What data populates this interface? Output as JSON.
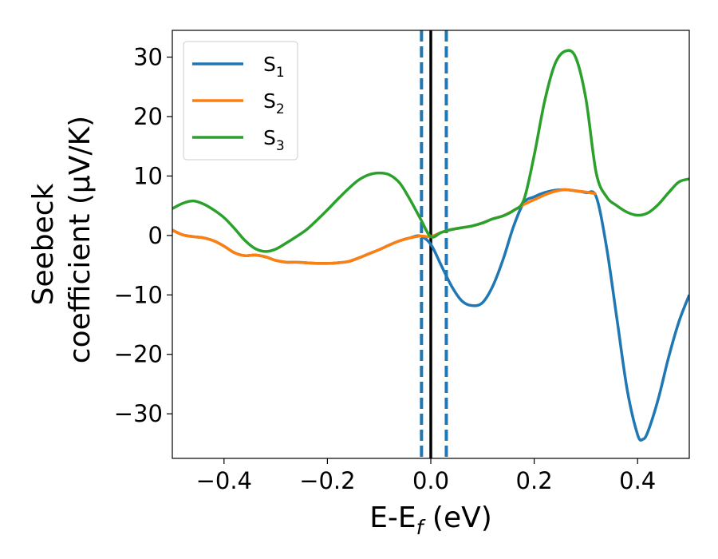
{
  "chart_data": {
    "type": "line",
    "xlabel": "E-E",
    "xlabel_sub": "f",
    "xlabel_unit": " (eV)",
    "ylabel_line1": "Seebeck",
    "ylabel_line2": "coefficient  (μV/K)",
    "xlim": [
      -0.5,
      0.5
    ],
    "ylim": [
      -37.5,
      34.5
    ],
    "xticks": [
      -0.4,
      -0.2,
      0.0,
      0.2,
      0.4
    ],
    "xtick_labels": [
      "−0.4",
      "−0.2",
      "0.0",
      "0.2",
      "0.4"
    ],
    "yticks": [
      30,
      20,
      10,
      0,
      -10,
      -20,
      -30
    ],
    "ytick_labels": [
      "30",
      "20",
      "10",
      "0",
      "−10",
      "−20",
      "−30"
    ],
    "grid": false,
    "legend_position": "top-left",
    "vlines": [
      {
        "x": -0.018,
        "style": "dashed",
        "color": "#1f77b4"
      },
      {
        "x": 0.03,
        "style": "dashed",
        "color": "#1f77b4"
      },
      {
        "x": 0.0,
        "style": "solid",
        "color": "#000000"
      }
    ],
    "series": [
      {
        "name": "S",
        "name_sub": "1",
        "color": "#1f77b4",
        "points": [
          [
            -0.5,
            0.9
          ],
          [
            -0.48,
            0.1
          ],
          [
            -0.46,
            -0.2
          ],
          [
            -0.44,
            -0.4
          ],
          [
            -0.42,
            -0.9
          ],
          [
            -0.4,
            -1.8
          ],
          [
            -0.38,
            -2.9
          ],
          [
            -0.36,
            -3.4
          ],
          [
            -0.34,
            -3.3
          ],
          [
            -0.32,
            -3.6
          ],
          [
            -0.3,
            -4.2
          ],
          [
            -0.28,
            -4.5
          ],
          [
            -0.26,
            -4.5
          ],
          [
            -0.24,
            -4.6
          ],
          [
            -0.22,
            -4.7
          ],
          [
            -0.2,
            -4.7
          ],
          [
            -0.18,
            -4.6
          ],
          [
            -0.16,
            -4.4
          ],
          [
            -0.14,
            -3.8
          ],
          [
            -0.12,
            -3.1
          ],
          [
            -0.1,
            -2.4
          ],
          [
            -0.08,
            -1.6
          ],
          [
            -0.06,
            -0.9
          ],
          [
            -0.04,
            -0.4
          ],
          [
            -0.02,
            -0.1
          ],
          [
            0.0,
            -1.5
          ],
          [
            0.02,
            -5.0
          ],
          [
            0.04,
            -8.5
          ],
          [
            0.06,
            -11.0
          ],
          [
            0.08,
            -11.8
          ],
          [
            0.1,
            -11.3
          ],
          [
            0.12,
            -8.5
          ],
          [
            0.14,
            -4.0
          ],
          [
            0.16,
            1.5
          ],
          [
            0.18,
            5.5
          ],
          [
            0.2,
            6.5
          ],
          [
            0.22,
            7.2
          ],
          [
            0.24,
            7.6
          ],
          [
            0.26,
            7.7
          ],
          [
            0.28,
            7.5
          ],
          [
            0.3,
            7.2
          ],
          [
            0.32,
            6.5
          ],
          [
            0.34,
            -2.0
          ],
          [
            0.36,
            -14.0
          ],
          [
            0.38,
            -26.0
          ],
          [
            0.4,
            -33.5
          ],
          [
            0.41,
            -34.3
          ],
          [
            0.42,
            -33.0
          ],
          [
            0.44,
            -27.5
          ],
          [
            0.46,
            -20.5
          ],
          [
            0.48,
            -14.5
          ],
          [
            0.5,
            -10.0
          ]
        ]
      },
      {
        "name": "S",
        "name_sub": "2",
        "color": "#ff7f0e",
        "points": [
          [
            -0.5,
            0.9
          ],
          [
            -0.48,
            0.1
          ],
          [
            -0.46,
            -0.2
          ],
          [
            -0.44,
            -0.4
          ],
          [
            -0.42,
            -0.9
          ],
          [
            -0.4,
            -1.8
          ],
          [
            -0.38,
            -2.9
          ],
          [
            -0.36,
            -3.4
          ],
          [
            -0.34,
            -3.3
          ],
          [
            -0.32,
            -3.6
          ],
          [
            -0.3,
            -4.2
          ],
          [
            -0.28,
            -4.5
          ],
          [
            -0.26,
            -4.5
          ],
          [
            -0.24,
            -4.6
          ],
          [
            -0.22,
            -4.7
          ],
          [
            -0.2,
            -4.7
          ],
          [
            -0.18,
            -4.6
          ],
          [
            -0.16,
            -4.4
          ],
          [
            -0.14,
            -3.8
          ],
          [
            -0.12,
            -3.1
          ],
          [
            -0.1,
            -2.4
          ],
          [
            -0.08,
            -1.6
          ],
          [
            -0.06,
            -0.9
          ],
          [
            -0.04,
            -0.4
          ],
          [
            -0.02,
            -0.1
          ],
          [
            0.0,
            -0.2
          ],
          [
            0.02,
            0.5
          ],
          [
            0.04,
            1.0
          ],
          [
            0.06,
            1.3
          ],
          [
            0.08,
            1.6
          ],
          [
            0.1,
            2.1
          ],
          [
            0.12,
            2.8
          ],
          [
            0.14,
            3.3
          ],
          [
            0.16,
            4.2
          ],
          [
            0.18,
            5.2
          ],
          [
            0.2,
            6.0
          ],
          [
            0.22,
            6.8
          ],
          [
            0.24,
            7.4
          ],
          [
            0.26,
            7.7
          ],
          [
            0.28,
            7.5
          ],
          [
            0.3,
            7.3
          ],
          [
            0.32,
            7.0
          ]
        ]
      },
      {
        "name": "S",
        "name_sub": "3",
        "color": "#2ca02c",
        "points": [
          [
            -0.5,
            4.5
          ],
          [
            -0.48,
            5.4
          ],
          [
            -0.46,
            5.8
          ],
          [
            -0.44,
            5.3
          ],
          [
            -0.42,
            4.3
          ],
          [
            -0.4,
            3.0
          ],
          [
            -0.38,
            1.2
          ],
          [
            -0.36,
            -0.8
          ],
          [
            -0.34,
            -2.2
          ],
          [
            -0.32,
            -2.7
          ],
          [
            -0.3,
            -2.3
          ],
          [
            -0.28,
            -1.3
          ],
          [
            -0.26,
            -0.2
          ],
          [
            -0.24,
            1.0
          ],
          [
            -0.22,
            2.6
          ],
          [
            -0.2,
            4.3
          ],
          [
            -0.18,
            6.1
          ],
          [
            -0.16,
            7.8
          ],
          [
            -0.14,
            9.3
          ],
          [
            -0.12,
            10.2
          ],
          [
            -0.1,
            10.5
          ],
          [
            -0.08,
            10.2
          ],
          [
            -0.06,
            8.8
          ],
          [
            -0.04,
            6.0
          ],
          [
            -0.02,
            2.8
          ],
          [
            0.0,
            -0.2
          ],
          [
            0.02,
            0.5
          ],
          [
            0.04,
            1.0
          ],
          [
            0.06,
            1.3
          ],
          [
            0.08,
            1.6
          ],
          [
            0.1,
            2.1
          ],
          [
            0.12,
            2.8
          ],
          [
            0.14,
            3.3
          ],
          [
            0.16,
            4.2
          ],
          [
            0.18,
            6.0
          ],
          [
            0.2,
            13.5
          ],
          [
            0.22,
            22.5
          ],
          [
            0.24,
            28.8
          ],
          [
            0.26,
            31.0
          ],
          [
            0.28,
            30.0
          ],
          [
            0.3,
            23.0
          ],
          [
            0.32,
            10.5
          ],
          [
            0.34,
            6.5
          ],
          [
            0.36,
            5.0
          ],
          [
            0.38,
            3.9
          ],
          [
            0.4,
            3.4
          ],
          [
            0.42,
            3.8
          ],
          [
            0.44,
            5.2
          ],
          [
            0.46,
            7.2
          ],
          [
            0.48,
            9.0
          ],
          [
            0.5,
            9.5
          ]
        ]
      }
    ]
  }
}
